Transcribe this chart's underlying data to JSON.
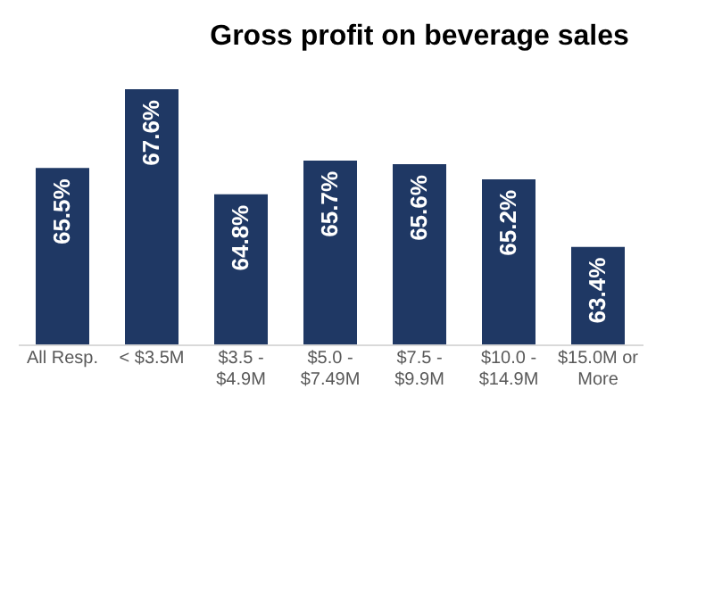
{
  "chart_data": {
    "type": "bar",
    "title": "Gross profit on beverage sales",
    "categories": [
      "All Resp.",
      "< $3.5M",
      "$3.5 -\n$4.9M",
      "$5.0 -\n$7.49M",
      "$7.5 -\n$9.9M",
      "$10.0 -\n$14.9M",
      "$15.0M or\nMore"
    ],
    "values": [
      65.5,
      67.6,
      64.8,
      65.7,
      65.6,
      65.2,
      63.4
    ],
    "value_labels": [
      "65.5%",
      "67.6%",
      "64.8%",
      "65.7%",
      "65.6%",
      "65.2%",
      "63.4%"
    ],
    "color": "#1f3864",
    "ylim": [
      60.8,
      67.6
    ],
    "grid": false
  }
}
